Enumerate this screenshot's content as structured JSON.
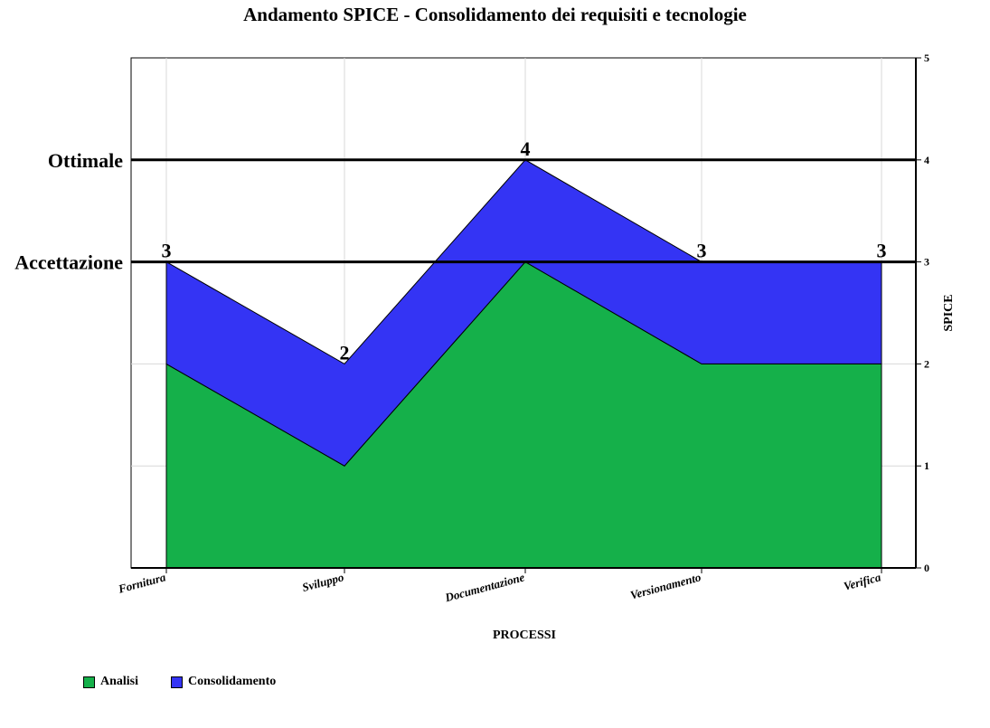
{
  "chart_data": {
    "type": "area",
    "stacked": true,
    "title": "Andamento SPICE - Consolidamento dei requisiti e tecnologie",
    "xlabel": "PROCESSI",
    "ylabel": "SPICE",
    "categories": [
      "Fornitura",
      "Sviluppo",
      "Documentazione",
      "Versionamento",
      "Verifica"
    ],
    "series": [
      {
        "name": "Analisi",
        "color": "#15b04a",
        "values": [
          2,
          1,
          3,
          2,
          2
        ]
      },
      {
        "name": "Consolidamento",
        "color": "#3434f4",
        "values": [
          1,
          1,
          1,
          1,
          1
        ]
      }
    ],
    "total_labels": [
      "3",
      "2",
      "4",
      "3",
      "3"
    ],
    "ylim": [
      0,
      5
    ],
    "yticks": [
      "0",
      "1",
      "2",
      "3",
      "4",
      "5"
    ],
    "y_axis_side": "right",
    "grid": true,
    "reference_lines": [
      {
        "label": "Ottimale",
        "value": 4
      },
      {
        "label": "Accettazione",
        "value": 3
      }
    ],
    "legend_position": "bottom-left"
  }
}
